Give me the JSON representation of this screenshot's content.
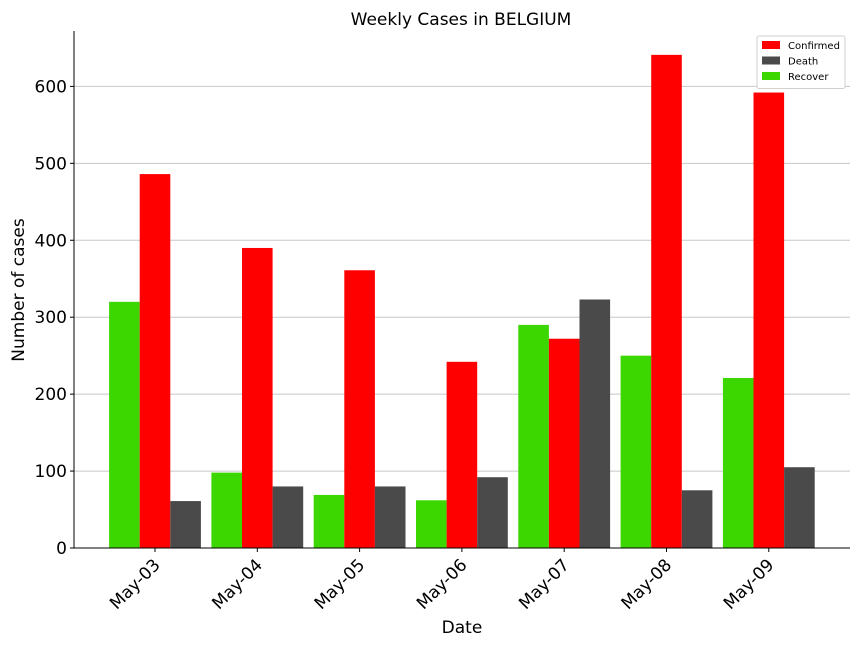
{
  "chart_data": {
    "type": "bar",
    "title": "Weekly Cases in BELGIUM",
    "xlabel": "Date",
    "ylabel": "Number of cases",
    "categories": [
      "May-03",
      "May-04",
      "May-05",
      "May-06",
      "May-07",
      "May-08",
      "May-09"
    ],
    "series": [
      {
        "name": "Recover",
        "color": "#3cd700",
        "values": [
          320,
          98,
          69,
          62,
          290,
          250,
          221
        ]
      },
      {
        "name": "Confirmed",
        "color": "#ff0000",
        "values": [
          486,
          390,
          361,
          242,
          272,
          641,
          592
        ]
      },
      {
        "name": "Death",
        "color": "#4a4a4a",
        "values": [
          61,
          80,
          80,
          92,
          323,
          75,
          105
        ]
      }
    ],
    "legend_order": [
      "Confirmed",
      "Death",
      "Recover"
    ],
    "legend_position": "top-right",
    "ylim": [
      0,
      672
    ],
    "yticks": [
      0,
      100,
      200,
      300,
      400,
      500,
      600
    ],
    "grid": "horizontal"
  }
}
